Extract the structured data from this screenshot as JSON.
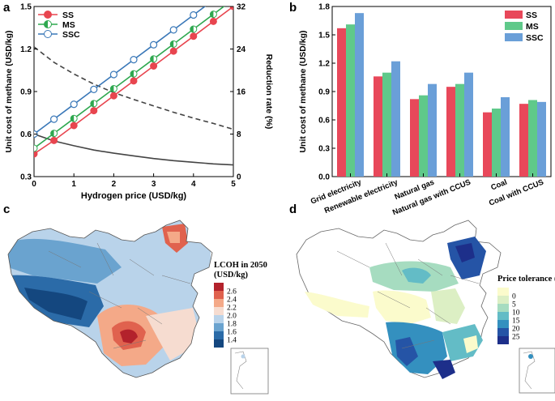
{
  "panels": {
    "a": "a",
    "b": "b",
    "c": "c",
    "d": "d"
  },
  "chart_data": [
    {
      "id": "panel-a",
      "type": "line",
      "title": "",
      "xlabel": "Hydrogen price (USD/kg)",
      "ylabel": "Unit cost of methane (USD/kg)",
      "y2label": "Reduction rate (%)",
      "xlim": [
        0,
        5
      ],
      "ylim": [
        0.3,
        1.5
      ],
      "y2lim": [
        0,
        32
      ],
      "x_ticks": [
        "0",
        "1",
        "2",
        "3",
        "4",
        "5"
      ],
      "y_ticks": [
        "0.3",
        "0.6",
        "0.9",
        "1.2",
        "1.5"
      ],
      "y2_ticks": [
        "0",
        "8",
        "16",
        "24",
        "32"
      ],
      "legend": [
        "SS",
        "MS",
        "SSC"
      ],
      "legend_position": "top-left",
      "series": [
        {
          "name": "SS",
          "color": "#e8454f",
          "marker": "filled-circle",
          "x": [
            0,
            0.5,
            1,
            1.5,
            2,
            2.5,
            3,
            3.5,
            4,
            4.5,
            5
          ],
          "values": [
            0.46,
            0.555,
            0.66,
            0.765,
            0.87,
            0.975,
            1.08,
            1.185,
            1.29,
            1.395,
            1.5
          ]
        },
        {
          "name": "MS",
          "color": "#2ea84f",
          "marker": "half-filled-circle",
          "x": [
            0,
            0.5,
            1,
            1.5,
            2,
            2.5,
            3,
            3.5,
            4,
            4.5,
            5
          ],
          "values": [
            0.5,
            0.605,
            0.71,
            0.815,
            0.92,
            1.025,
            1.13,
            1.235,
            1.34,
            1.445,
            1.55
          ]
        },
        {
          "name": "SSC",
          "color": "#3a78b8",
          "marker": "open-circle",
          "x": [
            0,
            0.5,
            1,
            1.5,
            2,
            2.5,
            3,
            3.5,
            4,
            4.5,
            5
          ],
          "values": [
            0.6,
            0.705,
            0.81,
            0.915,
            1.02,
            1.125,
            1.23,
            1.335,
            1.44,
            1.545,
            1.65
          ]
        }
      ],
      "reduction_series": [
        {
          "name": "reduction-dashed",
          "axis": "right",
          "style": "dashed",
          "x": [
            0,
            0.5,
            1,
            1.5,
            2,
            2.5,
            3,
            3.5,
            4,
            4.5,
            5
          ],
          "values": [
            24.4,
            21.5,
            19.3,
            17.4,
            15.8,
            14.5,
            13.3,
            12.1,
            11.0,
            10.0,
            8.9
          ]
        },
        {
          "name": "reduction-solid",
          "axis": "right",
          "style": "solid",
          "x": [
            0,
            0.5,
            1,
            1.5,
            2,
            2.5,
            3,
            3.5,
            4,
            4.5,
            5
          ],
          "values": [
            8.0,
            6.7,
            5.8,
            5.0,
            4.4,
            3.9,
            3.4,
            3.0,
            2.7,
            2.4,
            2.2
          ]
        }
      ]
    },
    {
      "id": "panel-b",
      "type": "bar",
      "title": "",
      "xlabel": "",
      "ylabel": "Unit cost of methane (USD/kg)",
      "ylim": [
        0,
        1.8
      ],
      "y_ticks": [
        "0.0",
        "0.3",
        "0.6",
        "0.9",
        "1.2",
        "1.5",
        "1.8"
      ],
      "categories": [
        "Grid electricity",
        "Renewable electricity",
        "Natural gas",
        "Natural gas with CCUS",
        "Coal",
        "Coal with CCUS"
      ],
      "legend_position": "top-right",
      "series": [
        {
          "name": "SS",
          "color": "#e8485a",
          "values": [
            1.57,
            1.06,
            0.82,
            0.95,
            0.68,
            0.77
          ]
        },
        {
          "name": "MS",
          "color": "#5fc98a",
          "values": [
            1.61,
            1.1,
            0.86,
            0.98,
            0.72,
            0.81
          ]
        },
        {
          "name": "SSC",
          "color": "#6a9fd8",
          "values": [
            1.73,
            1.22,
            0.98,
            1.1,
            0.84,
            0.79
          ]
        }
      ]
    }
  ],
  "map_c": {
    "legend_title_line1": "LCOH in 2050",
    "legend_title_line2": "(USD/kg)",
    "legend_labels": [
      "2.6",
      "2.4",
      "2.2",
      "2.0",
      "1.8",
      "1.6",
      "1.4"
    ],
    "legend_colors": [
      "#b3222c",
      "#e0624e",
      "#f4a988",
      "#f6dcd0",
      "#b9d3ea",
      "#6aa3cf",
      "#2b6ba8",
      "#14477f"
    ]
  },
  "map_d": {
    "legend_title": "Price tolerance (%)",
    "legend_labels": [
      "0",
      "5",
      "10",
      "15",
      "20",
      "25"
    ],
    "legend_colors": [
      "#fbfbcc",
      "#dcefc4",
      "#a6dcc0",
      "#63bcc6",
      "#3490bf",
      "#2554a6",
      "#1d2f8a"
    ]
  }
}
